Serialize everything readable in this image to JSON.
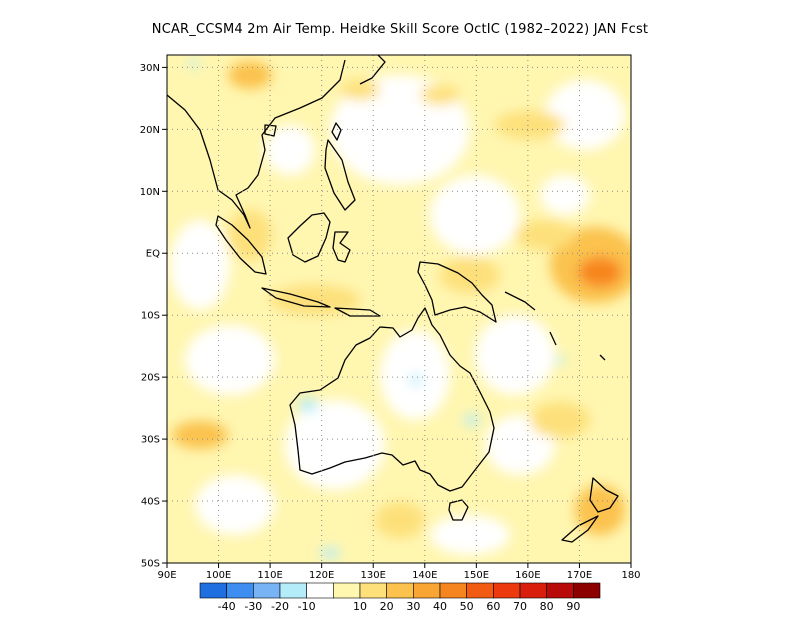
{
  "title": "NCAR_CCSM4  2m Air Temp. Heidke Skill Score OctIC (1982–2022) JAN Fcst",
  "map": {
    "lon_range": [
      90,
      180
    ],
    "lat_range": [
      -50,
      32
    ],
    "lat_ticks": [
      {
        "value": 30,
        "label": "30N"
      },
      {
        "value": 20,
        "label": "20N"
      },
      {
        "value": 10,
        "label": "10N"
      },
      {
        "value": 0,
        "label": "EQ"
      },
      {
        "value": -10,
        "label": "10S"
      },
      {
        "value": -20,
        "label": "20S"
      },
      {
        "value": -30,
        "label": "30S"
      },
      {
        "value": -40,
        "label": "40S"
      },
      {
        "value": -50,
        "label": "50S"
      }
    ],
    "lon_ticks": [
      {
        "value": 90,
        "label": "90E"
      },
      {
        "value": 100,
        "label": "100E"
      },
      {
        "value": 110,
        "label": "110E"
      },
      {
        "value": 120,
        "label": "120E"
      },
      {
        "value": 130,
        "label": "130E"
      },
      {
        "value": 140,
        "label": "140E"
      },
      {
        "value": 150,
        "label": "150E"
      },
      {
        "value": 160,
        "label": "160E"
      },
      {
        "value": 170,
        "label": "170E"
      },
      {
        "value": 180,
        "label": "180"
      }
    ]
  },
  "colorbar": {
    "colors": [
      "#1f6fe0",
      "#3d8ef0",
      "#78b4f5",
      "#b5ecfa",
      "#ffffff",
      "#fff6b0",
      "#fde07a",
      "#fbc24e",
      "#f9a533",
      "#f7851f",
      "#f25c12",
      "#ec3a0e",
      "#d91f0b",
      "#b80a08",
      "#8c0000"
    ],
    "labels": [
      "-40",
      "-30",
      "-20",
      "-10",
      "10",
      "20",
      "30",
      "40",
      "50",
      "60",
      "70",
      "80",
      "90"
    ]
  }
}
